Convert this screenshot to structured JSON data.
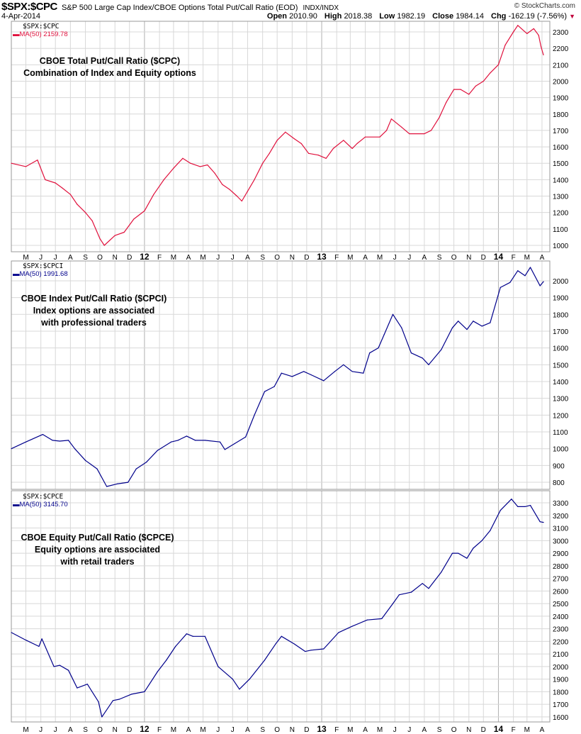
{
  "header": {
    "symbol": "$SPX:$CPC",
    "description": "S&P 500 Large Cap Index/CBOE Options Total Put/Call Ratio (EOD)",
    "exchange": "INDX/INDX",
    "brand": "© StockCharts.com",
    "date": "4-Apr-2014",
    "open_label": "Open",
    "open": "2010.90",
    "high_label": "High",
    "high": "2018.38",
    "low_label": "Low",
    "low": "1982.19",
    "close_label": "Close",
    "close": "1984.14",
    "chg_label": "Chg",
    "chg": "-162.19 (-7.56%)",
    "chg_icon": "down-triangle-icon"
  },
  "colors": {
    "cpc": "#e0103c",
    "cpci": "#00008b",
    "cpce": "#00008b",
    "grid": "#d8d8d8",
    "year_grid": "#b0b0b0"
  },
  "x_axis_labels": [
    {
      "label": "M",
      "date": "2011-05-01"
    },
    {
      "label": "J",
      "date": "2011-06-01"
    },
    {
      "label": "J",
      "date": "2011-07-01"
    },
    {
      "label": "A",
      "date": "2011-08-01"
    },
    {
      "label": "S",
      "date": "2011-09-01"
    },
    {
      "label": "O",
      "date": "2011-10-01"
    },
    {
      "label": "N",
      "date": "2011-11-01"
    },
    {
      "label": "D",
      "date": "2011-12-01"
    },
    {
      "label": "12",
      "date": "2012-01-01",
      "year": true
    },
    {
      "label": "F",
      "date": "2012-02-01"
    },
    {
      "label": "M",
      "date": "2012-03-01"
    },
    {
      "label": "A",
      "date": "2012-04-01"
    },
    {
      "label": "M",
      "date": "2012-05-01"
    },
    {
      "label": "J",
      "date": "2012-06-01"
    },
    {
      "label": "J",
      "date": "2012-07-01"
    },
    {
      "label": "A",
      "date": "2012-08-01"
    },
    {
      "label": "S",
      "date": "2012-09-01"
    },
    {
      "label": "O",
      "date": "2012-10-01"
    },
    {
      "label": "N",
      "date": "2012-11-01"
    },
    {
      "label": "D",
      "date": "2012-12-01"
    },
    {
      "label": "13",
      "date": "2013-01-01",
      "year": true
    },
    {
      "label": "F",
      "date": "2013-02-01"
    },
    {
      "label": "M",
      "date": "2013-03-01"
    },
    {
      "label": "A",
      "date": "2013-04-01"
    },
    {
      "label": "M",
      "date": "2013-05-01"
    },
    {
      "label": "J",
      "date": "2013-06-01"
    },
    {
      "label": "J",
      "date": "2013-07-01"
    },
    {
      "label": "A",
      "date": "2013-08-01"
    },
    {
      "label": "S",
      "date": "2013-09-01"
    },
    {
      "label": "O",
      "date": "2013-10-01"
    },
    {
      "label": "N",
      "date": "2013-11-01"
    },
    {
      "label": "D",
      "date": "2013-12-01"
    },
    {
      "label": "14",
      "date": "2014-01-01",
      "year": true
    },
    {
      "label": "F",
      "date": "2014-02-01"
    },
    {
      "label": "M",
      "date": "2014-03-01"
    },
    {
      "label": "A",
      "date": "2014-04-01"
    }
  ],
  "chart_data": [
    {
      "type": "line",
      "symbol": "$SPX:$CPC",
      "legend": "MA(50) 2159.78",
      "annotation": [
        "CBOE Total Put/Call Ratio ($CPC)",
        "Combination of Index and Equity options"
      ],
      "ylim": [
        961,
        2365
      ],
      "yticks": [
        1000,
        1100,
        1200,
        1300,
        1400,
        1500,
        1600,
        1700,
        1800,
        1900,
        2000,
        2100,
        2200,
        2300
      ],
      "grid": true,
      "series": [
        {
          "name": "MA(50)",
          "color": "#e0103c",
          "x": [
            "2011-04-01",
            "2011-05-01",
            "2011-05-25",
            "2011-06-10",
            "2011-07-01",
            "2011-07-15",
            "2011-08-01",
            "2011-08-15",
            "2011-09-01",
            "2011-09-15",
            "2011-10-01",
            "2011-10-10",
            "2011-11-01",
            "2011-11-20",
            "2011-12-10",
            "2012-01-01",
            "2012-01-20",
            "2012-02-10",
            "2012-03-01",
            "2012-03-20",
            "2012-04-05",
            "2012-04-25",
            "2012-05-10",
            "2012-05-25",
            "2012-06-10",
            "2012-06-25",
            "2012-07-10",
            "2012-07-20",
            "2012-08-01",
            "2012-08-15",
            "2012-09-01",
            "2012-09-15",
            "2012-10-01",
            "2012-10-18",
            "2012-11-05",
            "2012-11-20",
            "2012-12-05",
            "2012-12-25",
            "2013-01-10",
            "2013-01-25",
            "2013-02-15",
            "2013-03-05",
            "2013-03-15",
            "2013-04-01",
            "2013-05-01",
            "2013-05-15",
            "2013-05-25",
            "2013-06-15",
            "2013-07-01",
            "2013-08-01",
            "2013-08-15",
            "2013-09-01",
            "2013-09-15",
            "2013-10-01",
            "2013-10-15",
            "2013-11-01",
            "2013-11-15",
            "2013-12-01",
            "2013-12-15",
            "2014-01-01",
            "2014-01-15",
            "2014-02-01",
            "2014-02-10",
            "2014-03-01",
            "2014-03-15",
            "2014-03-25",
            "2014-03-30",
            "2014-04-04"
          ],
          "values": [
            1500,
            1480,
            1520,
            1400,
            1380,
            1350,
            1310,
            1250,
            1200,
            1150,
            1040,
            1000,
            1060,
            1080,
            1160,
            1210,
            1310,
            1400,
            1470,
            1530,
            1500,
            1480,
            1490,
            1440,
            1370,
            1340,
            1300,
            1270,
            1330,
            1400,
            1500,
            1560,
            1640,
            1690,
            1650,
            1620,
            1560,
            1550,
            1530,
            1590,
            1640,
            1590,
            1620,
            1660,
            1660,
            1700,
            1770,
            1720,
            1680,
            1680,
            1700,
            1780,
            1870,
            1950,
            1950,
            1920,
            1970,
            2000,
            2050,
            2100,
            2220,
            2300,
            2340,
            2290,
            2320,
            2280,
            2210,
            2160
          ]
        }
      ]
    },
    {
      "type": "line",
      "symbol": "$SPX:$CPCI",
      "legend": "MA(50) 1991.68",
      "annotation": [
        "CBOE Index Put/Call Ratio ($CPCI)",
        "Index options are associated",
        "with professional traders"
      ],
      "ylim": [
        758,
        2118
      ],
      "yticks": [
        800,
        900,
        1000,
        1100,
        1200,
        1300,
        1400,
        1500,
        1600,
        1700,
        1800,
        1900,
        2000
      ],
      "grid": true,
      "series": [
        {
          "name": "MA(50)",
          "color": "#00008b",
          "x": [
            "2011-04-01",
            "2011-05-01",
            "2011-06-05",
            "2011-06-25",
            "2011-07-10",
            "2011-07-28",
            "2011-08-10",
            "2011-09-01",
            "2011-09-25",
            "2011-10-15",
            "2011-11-05",
            "2011-11-28",
            "2011-12-15",
            "2012-01-05",
            "2012-01-28",
            "2012-02-25",
            "2012-03-10",
            "2012-03-28",
            "2012-04-15",
            "2012-05-05",
            "2012-06-05",
            "2012-06-15",
            "2012-07-05",
            "2012-07-28",
            "2012-08-15",
            "2012-09-05",
            "2012-09-25",
            "2012-10-10",
            "2012-11-01",
            "2012-11-25",
            "2012-12-10",
            "2013-01-05",
            "2013-01-28",
            "2013-02-15",
            "2013-03-05",
            "2013-03-28",
            "2013-04-10",
            "2013-04-28",
            "2013-05-10",
            "2013-05-28",
            "2013-06-15",
            "2013-07-05",
            "2013-07-28",
            "2013-08-10",
            "2013-09-05",
            "2013-09-28",
            "2013-10-10",
            "2013-10-28",
            "2013-11-10",
            "2013-11-28",
            "2013-12-15",
            "2014-01-05",
            "2014-01-25",
            "2014-02-10",
            "2014-02-25",
            "2014-03-08",
            "2014-03-28",
            "2014-04-04"
          ],
          "values": [
            1000,
            1040,
            1085,
            1050,
            1045,
            1050,
            1000,
            930,
            880,
            775,
            790,
            800,
            880,
            920,
            990,
            1040,
            1050,
            1075,
            1050,
            1050,
            1040,
            995,
            1030,
            1070,
            1200,
            1340,
            1370,
            1450,
            1430,
            1460,
            1440,
            1405,
            1460,
            1500,
            1460,
            1450,
            1570,
            1600,
            1680,
            1800,
            1720,
            1570,
            1540,
            1500,
            1590,
            1720,
            1760,
            1710,
            1760,
            1730,
            1750,
            1960,
            1990,
            2060,
            2030,
            2080,
            1970,
            1995
          ]
        }
      ]
    },
    {
      "type": "line",
      "symbol": "$SPX:$CPCE",
      "legend": "MA(50) 3145.70",
      "annotation": [
        "CBOE Equity Put/Call Ratio ($CPCE)",
        "Equity options are associated",
        "with retail traders"
      ],
      "ylim": [
        1560,
        3396
      ],
      "yticks": [
        1600,
        1700,
        1800,
        1900,
        2000,
        2100,
        2200,
        2300,
        2400,
        2500,
        2600,
        2700,
        2800,
        2900,
        3000,
        3100,
        3200,
        3300
      ],
      "grid": true,
      "series": [
        {
          "name": "MA(50)",
          "color": "#00008b",
          "x": [
            "2011-04-01",
            "2011-05-01",
            "2011-05-28",
            "2011-06-03",
            "2011-06-28",
            "2011-07-10",
            "2011-07-28",
            "2011-08-15",
            "2011-09-05",
            "2011-09-28",
            "2011-10-05",
            "2011-10-28",
            "2011-11-10",
            "2011-12-05",
            "2012-01-01",
            "2012-01-28",
            "2012-02-15",
            "2012-03-05",
            "2012-03-28",
            "2012-04-10",
            "2012-05-05",
            "2012-06-01",
            "2012-07-01",
            "2012-07-15",
            "2012-08-05",
            "2012-09-05",
            "2012-09-28",
            "2012-10-10",
            "2012-11-05",
            "2012-11-28",
            "2012-12-10",
            "2013-01-05",
            "2013-02-05",
            "2013-03-05",
            "2013-04-05",
            "2013-05-05",
            "2013-05-28",
            "2013-06-10",
            "2013-07-05",
            "2013-07-28",
            "2013-08-10",
            "2013-09-05",
            "2013-09-28",
            "2013-10-10",
            "2013-10-28",
            "2013-11-10",
            "2013-11-28",
            "2013-12-15",
            "2014-01-05",
            "2014-01-28",
            "2014-02-10",
            "2014-02-25",
            "2014-03-08",
            "2014-03-28",
            "2014-04-04"
          ],
          "values": [
            2270,
            2210,
            2160,
            2220,
            2000,
            2010,
            1970,
            1830,
            1860,
            1720,
            1600,
            1730,
            1740,
            1780,
            1800,
            1960,
            2050,
            2160,
            2260,
            2240,
            2240,
            2000,
            1900,
            1820,
            1900,
            2050,
            2180,
            2240,
            2180,
            2120,
            2130,
            2140,
            2270,
            2320,
            2370,
            2380,
            2500,
            2570,
            2590,
            2660,
            2620,
            2750,
            2900,
            2900,
            2860,
            2940,
            3000,
            3080,
            3240,
            3330,
            3270,
            3270,
            3280,
            3150,
            3145
          ]
        }
      ]
    }
  ]
}
